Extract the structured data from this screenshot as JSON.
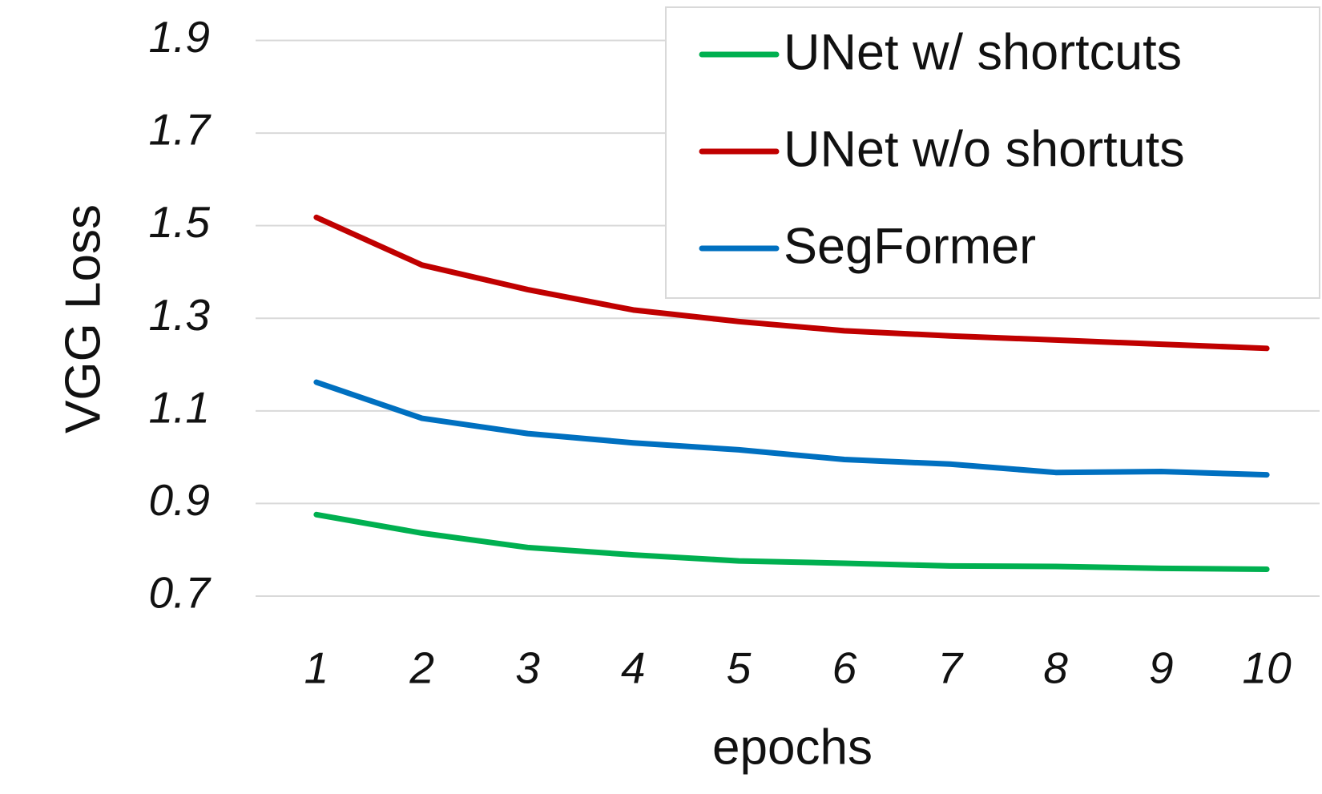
{
  "chart_data": {
    "type": "line",
    "x_label": "epochs",
    "y_label": "VGG Loss",
    "categories": [
      "1",
      "2",
      "3",
      "4",
      "5",
      "6",
      "7",
      "8",
      "9",
      "10"
    ],
    "series": [
      {
        "name": "UNet w/ shortcuts",
        "color": "#00b050",
        "values": [
          0.876,
          0.836,
          0.805,
          0.789,
          0.776,
          0.771,
          0.765,
          0.764,
          0.76,
          0.758
        ]
      },
      {
        "name": "UNet w/o shortuts",
        "color": "#c00000",
        "values": [
          1.518,
          1.415,
          1.362,
          1.318,
          1.293,
          1.273,
          1.262,
          1.253,
          1.244,
          1.235
        ]
      },
      {
        "name": "SegFormer",
        "color": "#0070c0",
        "values": [
          1.162,
          1.084,
          1.051,
          1.031,
          1.016,
          0.995,
          0.985,
          0.967,
          0.969,
          0.962
        ]
      }
    ],
    "ylim": [
      0.7,
      1.9
    ],
    "yticks": [
      0.7,
      0.9,
      1.1,
      1.3,
      1.5,
      1.7,
      1.9
    ],
    "grid": true,
    "legend": "upper right"
  }
}
